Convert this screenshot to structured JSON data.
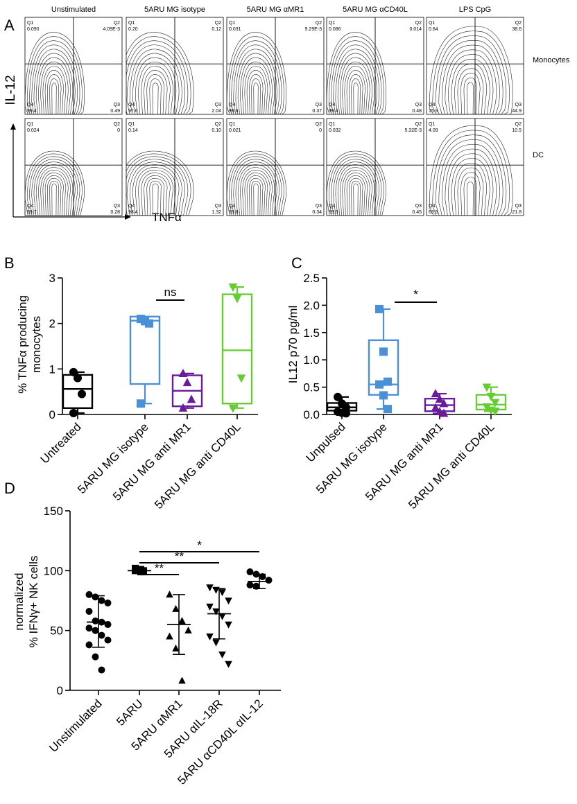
{
  "panel_labels": [
    "A",
    "B",
    "C",
    "D"
  ],
  "panel_a": {
    "column_titles": [
      "Unstimulated",
      "5ARU MG isotype",
      "5ARU MG αMR1",
      "5ARU MG αCD40L",
      "LPS CpG"
    ],
    "row_labels": [
      "Monocytes",
      "DC"
    ],
    "y_axis_label": "IL-12",
    "x_axis_label": "TNFα",
    "quadrant_names": [
      "Q1",
      "Q2",
      "Q3",
      "Q4"
    ],
    "values": [
      [
        {
          "Q1": "0.090",
          "Q2": "4.09E-3",
          "Q3": "0.49",
          "Q4": "99.4"
        },
        {
          "Q1": "0.20",
          "Q2": "0.12",
          "Q3": "2.04",
          "Q4": "97.6"
        },
        {
          "Q1": "0.031",
          "Q2": "9.29E-3",
          "Q3": "0.37",
          "Q4": "99.6"
        },
        {
          "Q1": "0.086",
          "Q2": "0.014",
          "Q3": "0.48",
          "Q4": "99.4"
        },
        {
          "Q1": "0.64",
          "Q2": "38.6",
          "Q3": "44.9",
          "Q4": "15.9"
        }
      ],
      [
        {
          "Q1": "0.024",
          "Q2": "0",
          "Q3": "0.28",
          "Q4": "99.7"
        },
        {
          "Q1": "0.14",
          "Q2": "0.10",
          "Q3": "1.32",
          "Q4": "98.4"
        },
        {
          "Q1": "0.021",
          "Q2": "0",
          "Q3": "0.34",
          "Q4": "99.6"
        },
        {
          "Q1": "0.032",
          "Q2": "5.32E-3",
          "Q3": "0.45",
          "Q4": "99.5"
        },
        {
          "Q1": "4.09",
          "Q2": "10.5",
          "Q3": "21.8",
          "Q4": "63.5"
        }
      ]
    ]
  },
  "chart_data": [
    {
      "type": "box",
      "panel": "B",
      "ylabel": "% TNFα producing monocytes",
      "ylim": [
        0,
        3
      ],
      "yticks": [
        0,
        1,
        2,
        3
      ],
      "categories": [
        "Untreated",
        "5ARU MG isotype",
        "5ARU MG anti MR1",
        "5ARU MG anti CD40L"
      ],
      "colors": [
        "#000000",
        "#4a90d9",
        "#6a1b9a",
        "#66cc33"
      ],
      "markers": [
        "circle",
        "square",
        "triangle-up",
        "triangle-down"
      ],
      "boxes": [
        {
          "min": 0.03,
          "q1": 0.14,
          "median": 0.56,
          "q3": 0.87,
          "max": 0.93
        },
        {
          "min": 0.24,
          "q1": 0.67,
          "median": 2.06,
          "q3": 2.15,
          "max": 2.15
        },
        {
          "min": 0.14,
          "q1": 0.18,
          "median": 0.52,
          "q3": 0.86,
          "max": 0.9
        },
        {
          "min": 0.14,
          "q1": 0.24,
          "median": 1.41,
          "q3": 2.64,
          "max": 2.8
        }
      ],
      "points": [
        [
          0.93,
          0.8,
          0.45,
          0.03
        ],
        [
          2.1,
          2.05,
          2.0,
          0.24
        ],
        [
          0.9,
          0.7,
          0.33,
          0.14
        ],
        [
          2.8,
          2.55,
          0.8,
          0.14
        ]
      ],
      "significance": [
        {
          "from": 1,
          "to": 2,
          "label": "ns"
        }
      ]
    },
    {
      "type": "box",
      "panel": "C",
      "ylabel": "IL12 p70 pg/ml",
      "ylim": [
        0,
        2.5
      ],
      "yticks": [
        "0.0",
        "0.5",
        "1.0",
        "1.5",
        "2.0",
        "2.5"
      ],
      "categories": [
        "Unpulsed",
        "5ARU MG isotype",
        "5ARU MG anti MR1",
        "5ARU MG anti CD40L"
      ],
      "colors": [
        "#000000",
        "#4a90d9",
        "#6a1b9a",
        "#66cc33"
      ],
      "markers": [
        "circle",
        "square",
        "triangle-up",
        "triangle-down"
      ],
      "boxes": [
        {
          "min": 0.02,
          "q1": 0.07,
          "median": 0.13,
          "q3": 0.21,
          "max": 0.32
        },
        {
          "min": 0.1,
          "q1": 0.36,
          "median": 0.55,
          "q3": 1.36,
          "max": 1.93
        },
        {
          "min": 0.02,
          "q1": 0.06,
          "median": 0.17,
          "q3": 0.29,
          "max": 0.38
        },
        {
          "min": 0.06,
          "q1": 0.09,
          "median": 0.18,
          "q3": 0.36,
          "max": 0.5
        }
      ],
      "points": [
        [
          0.32,
          0.2,
          0.13,
          0.05,
          0.03,
          0.02
        ],
        [
          1.93,
          1.15,
          0.6,
          0.55,
          0.35,
          0.1
        ],
        [
          0.38,
          0.28,
          0.2,
          0.12,
          0.05,
          0.02
        ],
        [
          0.5,
          0.33,
          0.22,
          0.14,
          0.08,
          0.06
        ]
      ],
      "significance": [
        {
          "from": 1,
          "to": 2,
          "label": "*"
        }
      ]
    },
    {
      "type": "scatter",
      "panel": "D",
      "ylabel": "normalized % IFNγ+ NK cells",
      "ylim": [
        0,
        150
      ],
      "yticks": [
        0,
        50,
        100,
        150
      ],
      "categories": [
        "Unstimulated",
        "5ARU",
        "5ARU αMR1",
        "5ARU αIL-18R",
        "5ARU αCD40L αIL-12"
      ],
      "markers": [
        "circle",
        "square",
        "triangle-up",
        "triangle-down",
        "circle"
      ],
      "summary": [
        {
          "mean": 57,
          "sd_low": 36,
          "sd_high": 79
        },
        {
          "mean": 100,
          "sd_low": 100,
          "sd_high": 100
        },
        {
          "mean": 55,
          "sd_low": 30,
          "sd_high": 80
        },
        {
          "mean": 64,
          "sd_low": 43,
          "sd_high": 85
        },
        {
          "mean": 91,
          "sd_low": 85,
          "sd_high": 97
        }
      ],
      "points": [
        [
          80,
          78,
          75,
          73,
          66,
          58,
          57,
          55,
          52,
          50,
          46,
          42,
          38,
          28,
          17
        ],
        [
          102,
          101,
          101,
          100,
          100,
          100,
          99,
          99
        ],
        [
          80,
          68,
          58,
          50,
          45,
          35,
          8
        ],
        [
          86,
          84,
          82,
          75,
          70,
          66,
          62,
          55,
          45,
          40,
          30,
          22
        ],
        [
          99,
          97,
          95,
          92,
          88,
          87
        ]
      ],
      "significance": [
        {
          "from": 1,
          "to": 2,
          "label": "**"
        },
        {
          "from": 1,
          "to": 3,
          "label": "**"
        },
        {
          "from": 1,
          "to": 4,
          "label": "*"
        }
      ]
    }
  ]
}
